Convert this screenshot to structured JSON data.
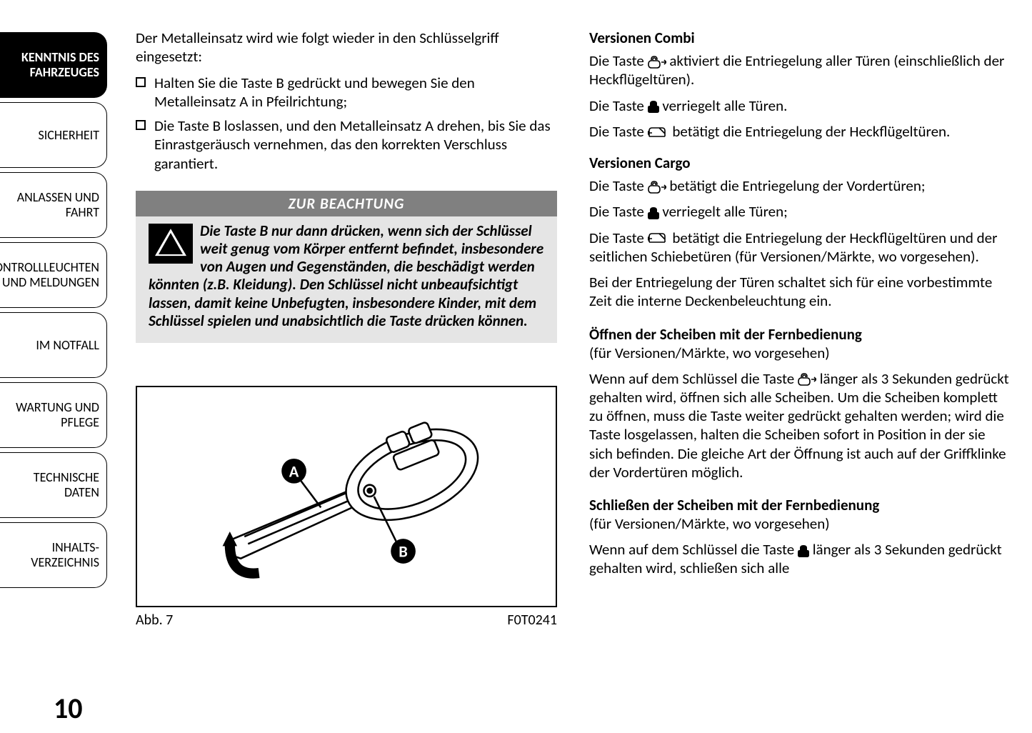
{
  "tabs": [
    {
      "label": "KENNTNIS DES FAHRZEUGES",
      "active": true
    },
    {
      "label": "SICHERHEIT",
      "active": false
    },
    {
      "label": "ANLASSEN UND FAHRT",
      "active": false
    },
    {
      "label": "KONTROLLLEUCHTEN UND MELDUNGEN",
      "active": false
    },
    {
      "label": "IM NOTFALL",
      "active": false
    },
    {
      "label": "WARTUNG UND PFLEGE",
      "active": false
    },
    {
      "label": "TECHNISCHE DATEN",
      "active": false
    },
    {
      "label": "INHALTS-VERZEICHNIS",
      "active": false
    }
  ],
  "left": {
    "intro": "Der Metalleinsatz wird wie folgt wieder in den Schlüsselgriff eingesetzt:",
    "bullets": [
      "Halten Sie die Taste B gedrückt und bewegen Sie den Metalleinsatz A in Pfeilrichtung;",
      "Die Taste B loslassen, und den Metalleinsatz A drehen, bis Sie das Einrastgeräusch vernehmen, das den korrekten Verschluss garantiert."
    ],
    "warning_title": "ZUR BEACHTUNG",
    "warning_body": "Die Taste B nur dann drücken, wenn sich der Schlüssel weit genug vom Körper entfernt befindet, insbesondere von Augen und Gegenständen, die beschädigt werden könnten (z.B. Kleidung). Den Schlüssel nicht unbeaufsichtigt lassen, damit keine Unbefugten, insbesondere Kinder, mit dem Schlüssel spielen und unabsichtlich die Taste drücken können.",
    "fig_label": "Abb. 7",
    "fig_code": "F0T0241",
    "label_A": "A",
    "label_B": "B"
  },
  "right": {
    "h1": "Versionen Combi",
    "combi_p1a": "Die Taste ",
    "combi_p1b": " aktiviert die Entriegelung aller Türen (einschließlich der Heckflügeltüren).",
    "combi_p2a": "Die Taste ",
    "combi_p2b": " verriegelt alle Türen.",
    "combi_p3a": "Die Taste ",
    "combi_p3b": " betätigt die Entriegelung der Heckflügeltüren.",
    "h2": "Versionen Cargo",
    "cargo_p1a": "Die Taste ",
    "cargo_p1b": " betätigt die Entriegelung der Vordertüren;",
    "cargo_p2a": "Die Taste ",
    "cargo_p2b": " verriegelt alle Türen;",
    "cargo_p3a": "Die Taste ",
    "cargo_p3b": " betätigt die Entriegelung der Heckflügeltüren und der seitlichen Schiebetüren (für Versionen/Märkte, wo vorgesehen).",
    "cargo_p4": "Bei der Entriegelung der Türen schaltet sich für eine vorbestimmte Zeit die interne Deckenbeleuchtung ein.",
    "h3": "Öffnen der Scheiben mit der Fernbedienung",
    "h3_note": "(für Versionen/Märkte, wo vorgesehen)",
    "open_p_a": "Wenn auf dem Schlüssel die Taste ",
    "open_p_b": " länger als 3 Sekunden gedrückt gehalten wird, öffnen sich alle Scheiben. Um die Scheiben komplett zu öffnen, muss die Taste weiter gedrückt gehalten werden; wird die Taste losgelassen, halten die Scheiben sofort in Position in der sie sich befinden. Die gleiche Art der Öffnung ist auch auf der Griffklinke der Vordertüren möglich.",
    "h4": "Schließen der Scheiben mit der Fernbedienung",
    "h4_note": "(für Versionen/Märkte, wo vorgesehen)",
    "close_p_a": "Wenn auf dem Schlüssel die Taste ",
    "close_p_b": " länger als 3 Sekunden gedrückt gehalten wird, schließen sich alle"
  },
  "page_number": "10"
}
